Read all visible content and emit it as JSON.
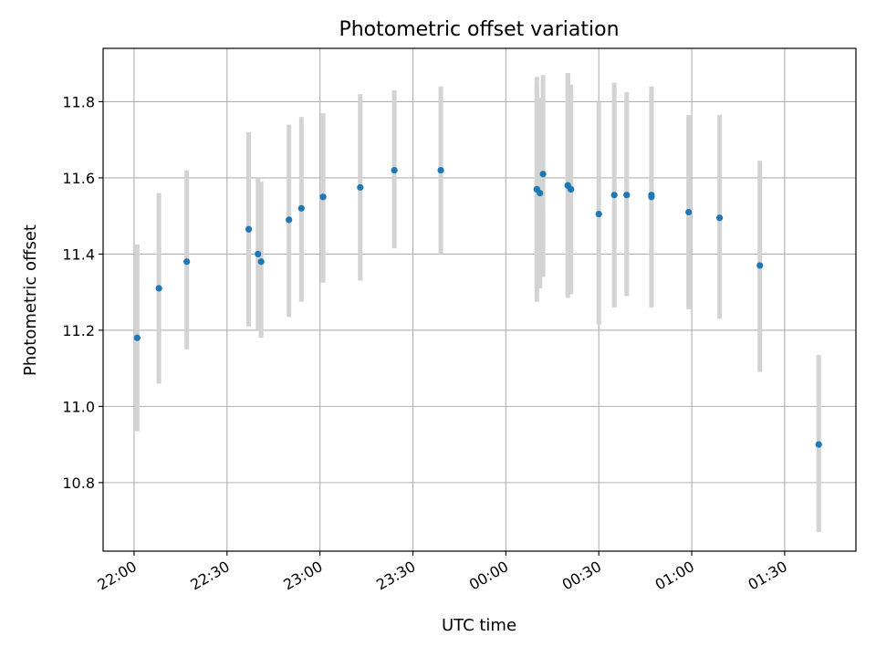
{
  "chart_data": {
    "type": "scatter",
    "title": "Photometric offset variation",
    "xlabel": "UTC time",
    "ylabel": "Photometric offset",
    "grid": true,
    "legend": "none",
    "x_ticks": [
      "22:00",
      "22:30",
      "23:00",
      "23:30",
      "00:00",
      "00:30",
      "01:00",
      "01:30"
    ],
    "xlim": [
      "21:50",
      "01:53"
    ],
    "y_ticks": [
      "10.8",
      "11.0",
      "11.2",
      "11.4",
      "11.6",
      "11.8"
    ],
    "ylim": [
      10.62,
      11.94
    ],
    "colors": {
      "point": "#1f77b4",
      "errorbar": "#d3d3d3",
      "grid": "#b0b0b0"
    },
    "x": [
      "22:01",
      "22:08",
      "22:17",
      "22:37",
      "22:40",
      "22:41",
      "22:50",
      "22:54",
      "23:01",
      "23:01",
      "23:13",
      "23:24",
      "23:39",
      "00:10",
      "00:10",
      "00:11",
      "00:12",
      "00:20",
      "00:20",
      "00:21",
      "00:21",
      "00:30",
      "00:35",
      "00:39",
      "00:47",
      "00:47",
      "00:59",
      "01:09",
      "01:22",
      "01:41"
    ],
    "y": [
      11.18,
      11.31,
      11.38,
      11.465,
      11.4,
      11.38,
      11.49,
      11.52,
      11.55,
      11.55,
      11.575,
      11.62,
      11.62,
      11.57,
      11.57,
      11.56,
      11.61,
      11.58,
      11.58,
      11.57,
      11.57,
      11.505,
      11.555,
      11.555,
      11.555,
      11.55,
      11.51,
      11.495,
      11.37,
      10.9
    ],
    "y_low": [
      10.935,
      11.06,
      11.15,
      11.21,
      11.2,
      11.18,
      11.235,
      11.275,
      11.325,
      11.33,
      11.33,
      11.415,
      11.4,
      11.3,
      11.275,
      11.31,
      11.34,
      11.285,
      11.295,
      11.295,
      11.305,
      11.215,
      11.26,
      11.29,
      11.265,
      11.26,
      11.255,
      11.23,
      11.09,
      10.67
    ],
    "y_high": [
      11.425,
      11.56,
      11.62,
      11.72,
      11.6,
      11.59,
      11.74,
      11.76,
      11.77,
      11.77,
      11.82,
      11.83,
      11.84,
      11.85,
      11.865,
      11.81,
      11.87,
      11.875,
      11.875,
      11.84,
      11.845,
      11.8,
      11.85,
      11.825,
      11.84,
      11.835,
      11.765,
      11.765,
      11.645,
      11.135
    ]
  }
}
